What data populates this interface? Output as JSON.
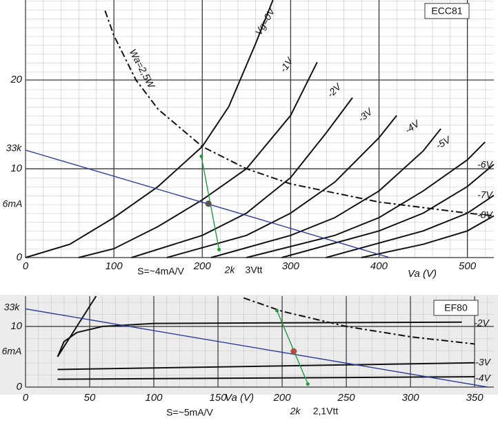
{
  "chart_data": [
    {
      "type": "line",
      "title": "ECC81",
      "xlabel": "Va (V)",
      "xlim": [
        0,
        530
      ],
      "ylim": [
        0,
        29
      ],
      "xticks": [
        0,
        100,
        200,
        300,
        400,
        500
      ],
      "yticks": [
        0,
        10,
        20
      ],
      "grid": true,
      "series": [
        {
          "name": "Vg=0V",
          "color": "#111111",
          "x": [
            0,
            50,
            100,
            150,
            200,
            230,
            260,
            280
          ],
          "values": [
            0,
            1.5,
            4.5,
            8,
            12.5,
            17,
            24,
            29
          ]
        },
        {
          "name": "-1V",
          "color": "#111111",
          "x": [
            60,
            100,
            150,
            200,
            250,
            300,
            330
          ],
          "values": [
            0,
            1,
            3.5,
            6.5,
            10,
            16,
            22
          ]
        },
        {
          "name": "-2V",
          "color": "#111111",
          "x": [
            120,
            200,
            250,
            300,
            340,
            370
          ],
          "values": [
            0,
            2.5,
            5,
            9,
            14,
            18
          ]
        },
        {
          "name": "-3V",
          "color": "#111111",
          "x": [
            160,
            250,
            300,
            350,
            400,
            420
          ],
          "values": [
            0,
            2.5,
            5,
            8.5,
            13.5,
            16
          ]
        },
        {
          "name": "-4V",
          "color": "#111111",
          "x": [
            210,
            300,
            350,
            400,
            450,
            470
          ],
          "values": [
            0,
            2.5,
            4.5,
            7.5,
            12,
            14.5
          ]
        },
        {
          "name": "-5V",
          "color": "#111111",
          "x": [
            250,
            350,
            400,
            450,
            500,
            520
          ],
          "values": [
            0,
            2.5,
            4.5,
            7.5,
            11,
            13
          ]
        },
        {
          "name": "-6V",
          "color": "#111111",
          "x": [
            290,
            400,
            450,
            500,
            530
          ],
          "values": [
            0,
            3,
            5,
            8,
            10.5
          ]
        },
        {
          "name": "-7V",
          "color": "#111111",
          "x": [
            340,
            450,
            500,
            530
          ],
          "values": [
            0,
            3,
            5,
            7
          ]
        },
        {
          "name": "-8V",
          "color": "#111111",
          "x": [
            380,
            450,
            500,
            530
          ],
          "values": [
            0,
            1.5,
            3,
            4.7
          ]
        },
        {
          "name": "Wa=2,5W",
          "color": "#111111",
          "dashed": true,
          "x": [
            90,
            100,
            125,
            150,
            200,
            250,
            300,
            400,
            500,
            530
          ],
          "values": [
            27.8,
            25,
            20,
            16.7,
            12.5,
            10,
            8.3,
            6.25,
            5,
            4.7
          ]
        },
        {
          "name": "33k",
          "color": "#2b3c9b",
          "x": [
            0,
            412
          ],
          "values": [
            12.1,
            0
          ]
        },
        {
          "name": "2k",
          "color": "#1e9a3c",
          "x": [
            199,
            219
          ],
          "values": [
            11.4,
            0.9
          ]
        },
        {
          "name": "6mA",
          "color": "#555555",
          "x": [
            207
          ],
          "values": [
            6.07
          ]
        }
      ],
      "annotations": [
        {
          "text": "3Vtt",
          "color": "#1e9a3c"
        },
        {
          "text": "S=~4mA/V",
          "color": "#2b3c9b"
        }
      ]
    },
    {
      "type": "line",
      "title": "EF80",
      "xlabel": "Va (V)",
      "xlim": [
        0,
        365
      ],
      "ylim": [
        0,
        15
      ],
      "xticks": [
        0,
        50,
        100,
        150,
        200,
        250,
        300,
        350
      ],
      "yticks": [
        0,
        10
      ],
      "grid": true,
      "series": [
        {
          "color": "#111111",
          "x": [
            25,
            40,
            55
          ],
          "values": [
            5,
            10,
            15
          ]
        },
        {
          "name": "-2V",
          "color": "#111111",
          "x": [
            25,
            30,
            40,
            60,
            100,
            200,
            340
          ],
          "values": [
            5,
            7.5,
            9,
            10,
            10.5,
            10.6,
            10.7
          ]
        },
        {
          "name": "-3V",
          "color": "#111111",
          "x": [
            25,
            350
          ],
          "values": [
            2.9,
            4
          ]
        },
        {
          "name": "-4V",
          "color": "#111111",
          "x": [
            25,
            350
          ],
          "values": [
            1.3,
            1.7
          ]
        },
        {
          "color": "#111111",
          "dashed": true,
          "x": [
            170,
            200,
            250,
            300,
            350
          ],
          "values": [
            14.7,
            12.5,
            10,
            8.3,
            7.1
          ]
        },
        {
          "name": "33k",
          "color": "#2b3c9b",
          "x": [
            0,
            360
          ],
          "values": [
            12.9,
            0
          ]
        },
        {
          "name": "2k",
          "color": "#1e9a3c",
          "x": [
            196,
            220
          ],
          "values": [
            12.6,
            0.5
          ]
        },
        {
          "name": "6mA",
          "color": "#b05040",
          "x": [
            209
          ],
          "values": [
            5.9
          ]
        }
      ],
      "annotations": [
        {
          "text": "2,1Vtt",
          "color": "#1e9a3c"
        },
        {
          "text": "S=~5mA/V",
          "color": "#2b3c9b"
        }
      ]
    }
  ]
}
